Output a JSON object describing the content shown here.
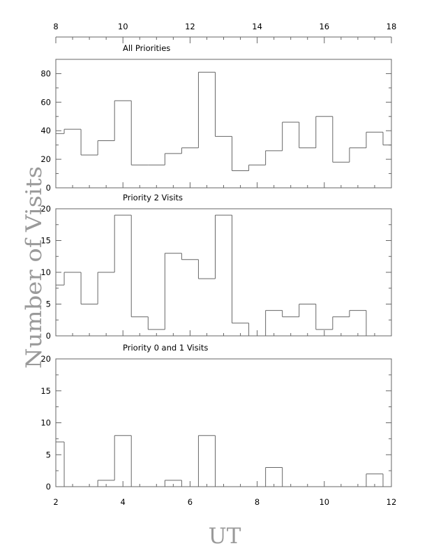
{
  "chart_data": {
    "type": "histogram",
    "top_axis": {
      "range": [
        8,
        18
      ],
      "ticks": [
        8,
        10,
        12,
        14,
        16,
        18
      ]
    },
    "bottom_axis": {
      "range": [
        2,
        12
      ],
      "ticks": [
        2,
        4,
        6,
        8,
        10,
        12
      ]
    },
    "xlabel": "UT",
    "ylabel": "Number of Visits",
    "bin_edges": [
      2.0,
      2.25,
      2.75,
      3.25,
      3.75,
      4.25,
      4.75,
      5.25,
      5.75,
      6.25,
      6.75,
      7.25,
      7.75,
      8.25,
      8.75,
      9.25,
      9.75,
      10.25,
      10.75,
      11.25,
      11.75,
      12.0
    ],
    "panels": [
      {
        "title": "All Priorities",
        "ylim": [
          0,
          90
        ],
        "yticks": [
          0,
          20,
          40,
          60,
          80
        ],
        "values": [
          38,
          41,
          23,
          33,
          61,
          16,
          16,
          24,
          28,
          81,
          36,
          12,
          16,
          26,
          46,
          28,
          50,
          18,
          28,
          39,
          30
        ]
      },
      {
        "title": "Priority 2 Visits",
        "ylim": [
          0,
          20
        ],
        "yticks": [
          0,
          5,
          10,
          15,
          20
        ],
        "values": [
          8,
          10,
          5,
          10,
          19,
          3,
          1,
          13,
          12,
          9,
          19,
          2,
          0,
          4,
          3,
          5,
          1,
          3,
          4,
          0,
          0
        ]
      },
      {
        "title": "Priority 0 and 1 Visits",
        "ylim": [
          0,
          20
        ],
        "yticks": [
          0,
          5,
          10,
          15,
          20
        ],
        "values": [
          7,
          0,
          0,
          1,
          8,
          0,
          0,
          1,
          0,
          8,
          0,
          0,
          0,
          3,
          0,
          0,
          0,
          0,
          0,
          2,
          0
        ]
      }
    ]
  }
}
